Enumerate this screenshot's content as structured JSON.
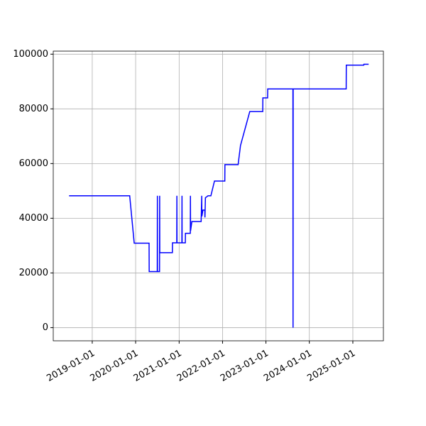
{
  "chart_data": {
    "type": "line",
    "color": "#0000ff",
    "grid": true,
    "x": [
      "2018-06-20",
      "2019-11-12",
      "2019-12-20",
      "2020-04-23",
      "2020-04-24",
      "2020-07-01",
      "2020-07-02",
      "2020-07-03",
      "2020-07-20",
      "2020-07-21",
      "2020-07-22",
      "2020-11-05",
      "2020-11-06",
      "2020-12-12",
      "2020-12-13",
      "2020-12-14",
      "2021-01-24",
      "2021-01-25",
      "2021-01-26",
      "2021-02-22",
      "2021-02-23",
      "2021-04-05",
      "2021-04-06",
      "2021-04-07",
      "2021-04-18",
      "2021-07-05",
      "2021-07-06",
      "2021-07-10",
      "2021-07-11",
      "2021-07-20",
      "2021-08-05",
      "2021-08-06",
      "2021-08-10",
      "2021-09-01",
      "2021-09-25",
      "2021-10-25",
      "2022-01-20",
      "2022-01-21",
      "2022-05-12",
      "2022-06-01",
      "2022-08-18",
      "2022-12-05",
      "2022-12-06",
      "2023-01-15",
      "2023-01-16",
      "2023-08-16",
      "2023-08-17",
      "2023-08-18",
      "2024-11-06",
      "2024-11-07",
      "2025-04-03",
      "2025-04-04",
      "2025-05-14"
    ],
    "values": [
      48200,
      48200,
      30900,
      30900,
      20500,
      20500,
      48200,
      20500,
      20500,
      48200,
      27400,
      27400,
      31000,
      31000,
      48200,
      31000,
      31000,
      48200,
      31000,
      31000,
      34500,
      34500,
      48200,
      35400,
      38800,
      38800,
      40700,
      48200,
      40700,
      43000,
      43000,
      40300,
      47500,
      48200,
      48200,
      53600,
      53600,
      59600,
      59600,
      66600,
      79000,
      79000,
      84000,
      84000,
      87300,
      87300,
      0,
      87300,
      87300,
      96000,
      96000,
      96300,
      96300
    ],
    "xlim": [
      "2018-02-07",
      "2025-09-15"
    ],
    "xticks": [
      "2019-01-01",
      "2020-01-01",
      "2021-01-01",
      "2022-01-01",
      "2023-01-01",
      "2024-01-01",
      "2025-01-01"
    ],
    "ylim": [
      -4815,
      101115
    ],
    "yticks": [
      0,
      20000,
      40000,
      60000,
      80000,
      100000
    ]
  }
}
